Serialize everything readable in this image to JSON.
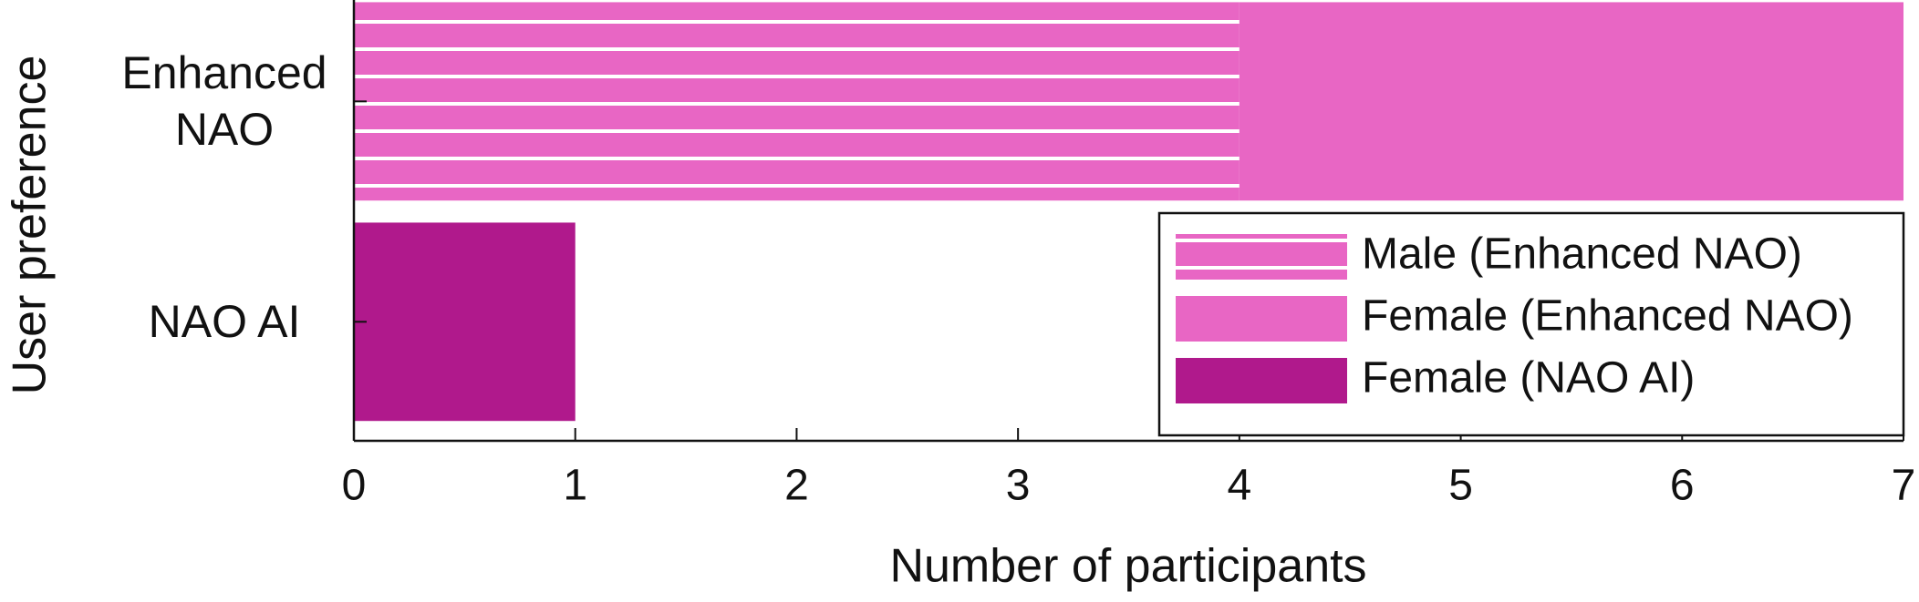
{
  "chart_data": {
    "type": "hbar-stacked",
    "categories": [
      "Enhanced NAO",
      "NAO AI"
    ],
    "series": [
      {
        "name": "Male (Enhanced NAO)",
        "color": "#e866c4",
        "pattern": "horizontal-lines",
        "values": [
          4,
          null
        ]
      },
      {
        "name": "Female (Enhanced NAO)",
        "color": "#e866c4",
        "values": [
          3,
          null
        ]
      },
      {
        "name": "Female (NAO AI)",
        "color": "#b0198c",
        "values": [
          null,
          1
        ]
      }
    ],
    "xlabel": "Number of participants",
    "ylabel": "User preference",
    "xlim": [
      0,
      7
    ],
    "xticks": [
      0,
      1,
      2,
      3,
      4,
      5,
      6,
      7
    ],
    "legend": "lower right"
  }
}
